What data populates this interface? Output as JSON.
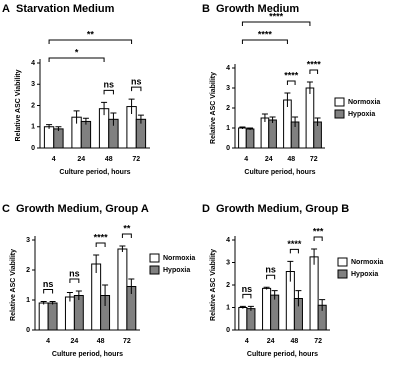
{
  "chart_data": [
    {
      "type": "bar",
      "label": "A",
      "title": "Starvation Medium",
      "xlabel": "Culture period, hours",
      "ylabel": "Relative ASC Viability",
      "categories": [
        "4",
        "24",
        "48",
        "72"
      ],
      "series": [
        {
          "color": "#ffffff",
          "values": [
            1.0,
            1.45,
            1.85,
            1.95
          ],
          "errors": [
            0.1,
            0.3,
            0.3,
            0.35
          ]
        },
        {
          "color": "#808080",
          "values": [
            0.9,
            1.25,
            1.35,
            1.35
          ],
          "errors": [
            0.1,
            0.15,
            0.3,
            0.2
          ]
        }
      ],
      "ylim": [
        0,
        4
      ],
      "yticks": [
        0,
        1,
        2,
        3,
        4
      ],
      "annotations": [
        {
          "text": "**",
          "span": [
            "4",
            "72"
          ]
        },
        {
          "text": "*",
          "span": [
            "4",
            "48"
          ]
        },
        {
          "text": "ns",
          "span": [
            "48"
          ]
        },
        {
          "text": "ns",
          "span": [
            "72"
          ]
        }
      ]
    },
    {
      "type": "bar",
      "label": "B",
      "title": "Growth Medium",
      "xlabel": "Culture period, hours",
      "ylabel": "Relative ASC Viability",
      "categories": [
        "4",
        "24",
        "48",
        "72"
      ],
      "series": [
        {
          "name": "Normoxia",
          "color": "#ffffff",
          "values": [
            1.0,
            1.5,
            2.4,
            3.0
          ],
          "errors": [
            0.05,
            0.2,
            0.35,
            0.3
          ]
        },
        {
          "name": "Hypoxia",
          "color": "#808080",
          "values": [
            0.95,
            1.4,
            1.3,
            1.3
          ],
          "errors": [
            0.05,
            0.15,
            0.25,
            0.2
          ]
        }
      ],
      "ylim": [
        0,
        4
      ],
      "yticks": [
        0,
        1,
        2,
        3,
        4
      ],
      "legend": "right",
      "annotations": [
        {
          "text": "****",
          "span": [
            "4",
            "72"
          ]
        },
        {
          "text": "****",
          "span": [
            "4",
            "48"
          ]
        },
        {
          "text": "****",
          "span": [
            "48"
          ]
        },
        {
          "text": "****",
          "span": [
            "72"
          ]
        }
      ]
    },
    {
      "type": "bar",
      "label": "C",
      "title": "Growth Medium, Group A",
      "xlabel": "Culture period, hours",
      "ylabel": "Relative ASC Viability",
      "categories": [
        "4",
        "24",
        "48",
        "72"
      ],
      "series": [
        {
          "name": "Normoxia",
          "color": "#ffffff",
          "values": [
            0.9,
            1.1,
            2.2,
            2.7
          ],
          "errors": [
            0.05,
            0.15,
            0.3,
            0.1
          ]
        },
        {
          "name": "Hypoxia",
          "color": "#808080",
          "values": [
            0.9,
            1.15,
            1.15,
            1.45
          ],
          "errors": [
            0.05,
            0.15,
            0.35,
            0.25
          ]
        }
      ],
      "ylim": [
        0,
        3
      ],
      "yticks": [
        0,
        1,
        2,
        3
      ],
      "legend": "right",
      "annotations": [
        {
          "text": "ns",
          "span": [
            "4"
          ]
        },
        {
          "text": "ns",
          "span": [
            "24"
          ]
        },
        {
          "text": "****",
          "span": [
            "48"
          ]
        },
        {
          "text": "**",
          "span": [
            "72"
          ]
        }
      ]
    },
    {
      "type": "bar",
      "label": "D",
      "title": "Growth Medium, Group B",
      "xlabel": "Culture period, hours",
      "ylabel": "Relative ASC Viability",
      "categories": [
        "4",
        "24",
        "48",
        "72"
      ],
      "series": [
        {
          "name": "Normoxia",
          "color": "#ffffff",
          "values": [
            1.0,
            1.85,
            2.6,
            3.25
          ],
          "errors": [
            0.05,
            0.05,
            0.45,
            0.35
          ]
        },
        {
          "name": "Hypoxia",
          "color": "#808080",
          "values": [
            0.95,
            1.55,
            1.4,
            1.1
          ],
          "errors": [
            0.1,
            0.2,
            0.35,
            0.25
          ]
        }
      ],
      "ylim": [
        0,
        4
      ],
      "yticks": [
        0,
        1,
        2,
        3,
        4
      ],
      "legend": "right",
      "annotations": [
        {
          "text": "ns",
          "span": [
            "4"
          ]
        },
        {
          "text": "ns",
          "span": [
            "24"
          ]
        },
        {
          "text": "****",
          "span": [
            "48"
          ]
        },
        {
          "text": "***",
          "span": [
            "72"
          ]
        }
      ]
    }
  ]
}
